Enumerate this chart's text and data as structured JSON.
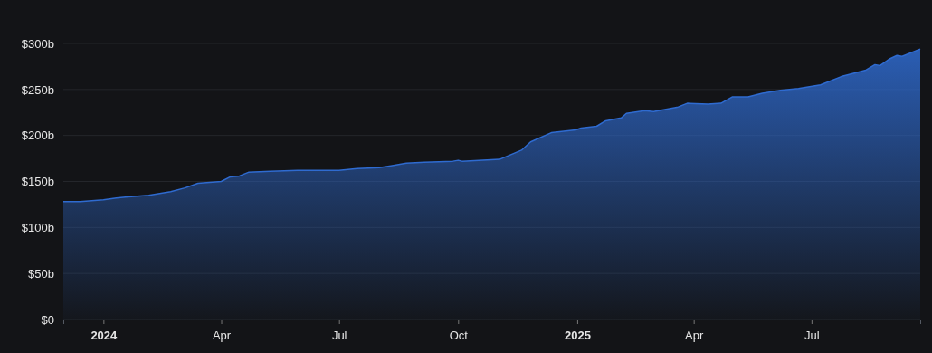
{
  "chart_data": {
    "type": "area",
    "x": [
      "2023-12-01",
      "2023-12-14",
      "2024-01-01",
      "2024-01-11",
      "2024-01-18",
      "2024-02-05",
      "2024-02-22",
      "2024-03-04",
      "2024-03-14",
      "2024-04-01",
      "2024-04-08",
      "2024-04-15",
      "2024-04-22",
      "2024-05-09",
      "2024-05-30",
      "2024-06-20",
      "2024-07-01",
      "2024-07-15",
      "2024-08-01",
      "2024-08-10",
      "2024-08-22",
      "2024-09-05",
      "2024-09-27",
      "2024-10-01",
      "2024-10-04",
      "2024-11-02",
      "2024-11-19",
      "2024-11-26",
      "2024-12-12",
      "2024-12-31",
      "2025-01-04",
      "2025-01-16",
      "2025-01-23",
      "2025-02-04",
      "2025-02-08",
      "2025-02-22",
      "2025-03-01",
      "2025-03-20",
      "2025-03-27",
      "2025-04-12",
      "2025-04-22",
      "2025-05-01",
      "2025-05-13",
      "2025-05-24",
      "2025-06-07",
      "2025-06-21",
      "2025-07-08",
      "2025-07-24",
      "2025-08-12",
      "2025-08-19",
      "2025-08-23",
      "2025-08-30",
      "2025-09-05",
      "2025-09-09",
      "2025-09-23"
    ],
    "series": [
      {
        "color": "#2f6bd0",
        "values": [
          128,
          128,
          130,
          132,
          133,
          135,
          139,
          143,
          148,
          150,
          155,
          156,
          160,
          161,
          162,
          162,
          162,
          164,
          165,
          167,
          170,
          171,
          172,
          173,
          172,
          174,
          184,
          193,
          203,
          206,
          208,
          210,
          216,
          219,
          224,
          227,
          226,
          231,
          235,
          234,
          235,
          242,
          242,
          246,
          249,
          251,
          255,
          264,
          271,
          277,
          276,
          283,
          287,
          286,
          294
        ]
      }
    ],
    "xlim": [
      "2023-12-01",
      "2025-09-23"
    ],
    "xticks": [
      {
        "value": "2024-01-01",
        "label": "2024"
      },
      {
        "value": "2024-04-01",
        "label": "Apr"
      },
      {
        "value": "2024-07-01",
        "label": "Jul"
      },
      {
        "value": "2024-10-01",
        "label": "Oct"
      },
      {
        "value": "2025-01-01",
        "label": "2025"
      },
      {
        "value": "2025-04-01",
        "label": "Apr"
      },
      {
        "value": "2025-07-01",
        "label": "Jul"
      }
    ],
    "ylim": [
      0,
      300
    ],
    "yticks": [
      {
        "value": 0,
        "label": "$0"
      },
      {
        "value": 50,
        "label": "$50b"
      },
      {
        "value": 100,
        "label": "$100b"
      },
      {
        "value": 150,
        "label": "$150b"
      },
      {
        "value": 200,
        "label": "$200b"
      },
      {
        "value": 250,
        "label": "$250b"
      },
      {
        "value": 300,
        "label": "$300b"
      }
    ],
    "grid": "y"
  }
}
